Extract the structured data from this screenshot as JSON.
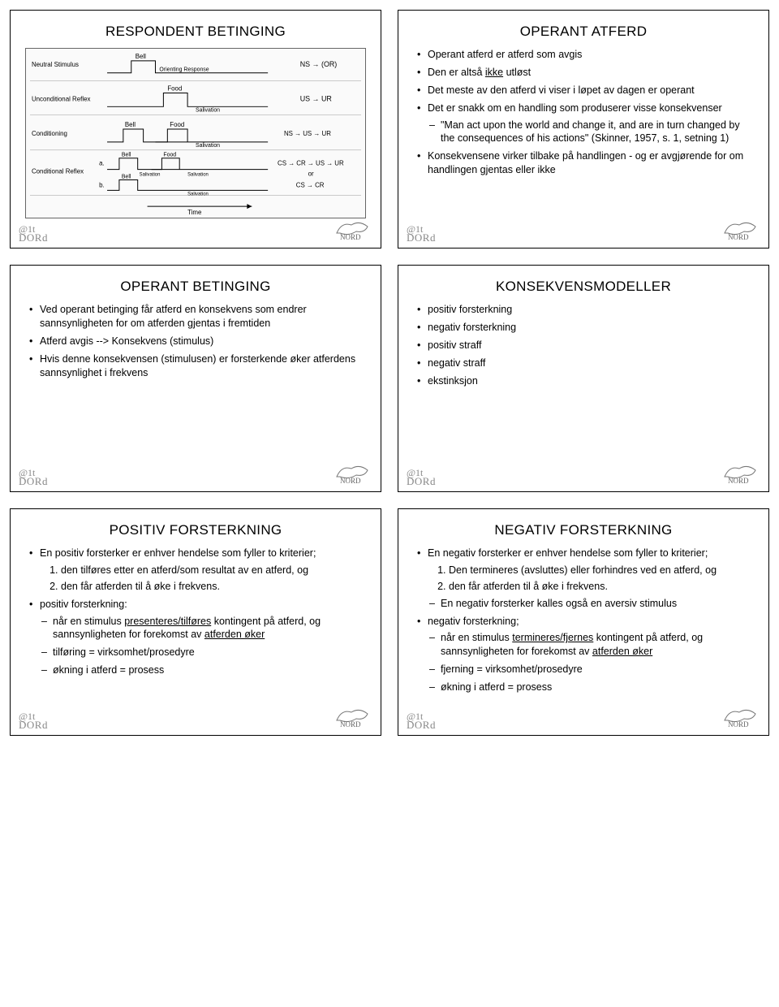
{
  "slides": {
    "respondent": {
      "title": "RESPONDENT BETINGING",
      "diagram": {
        "row_labels": [
          "Neutral Stimulus",
          "Unconditional Reflex",
          "Conditioning",
          "Conditional Reflex"
        ],
        "stim_labels": [
          "Bell",
          "Food",
          "Salivation"
        ],
        "formulas": [
          "NS → (OR)",
          "US → UR",
          "NS → US → UR",
          "CS → CR → US → UR",
          "or",
          "CS → CR"
        ],
        "xaxis": "Time"
      }
    },
    "operant_atferd": {
      "title": "OPERANT ATFERD",
      "bullets": [
        "Operant atferd er atferd som avgis",
        "Den er altså <u>ikke</u> utløst",
        "Det meste av den atferd vi viser i løpet av dagen er operant",
        "Det er snakk om en handling som produserer visse konsekvenser"
      ],
      "sub1": [
        "\"Man act upon the world and change it, and are in turn changed by the consequences of his actions\" (Skinner, 1957, s. 1, setning 1)"
      ],
      "bullets2": [
        "Konsekvensene virker tilbake på handlingen - og er avgjørende for om handlingen gjentas eller ikke"
      ]
    },
    "operant_bet": {
      "title": "OPERANT BETINGING",
      "bullets": [
        "Ved operant betinging får atferd en konsekvens som endrer sannsynligheten for om atferden gjentas i fremtiden",
        "Atferd avgis --> Konsekvens (stimulus)",
        "Hvis denne konsekvensen (stimulusen) er forsterkende øker atferdens sannsynlighet i frekvens"
      ]
    },
    "konsekvens": {
      "title": "KONSEKVENSMODELLER",
      "bullets": [
        "positiv forsterkning",
        "negativ forsterkning",
        "positiv straff",
        "negativ straff",
        "ekstinksjon"
      ]
    },
    "pos_forst": {
      "title": "POSITIV FORSTERKNING",
      "intro": "En positiv forsterker er enhver hendelse som fyller to kriterier;",
      "crit": [
        "den tilføres etter en atferd/som resultat av en atferd, og",
        "den får atferden til å øke i frekvens."
      ],
      "b2": "positiv forsterkning:",
      "sub": [
        "når en stimulus <u>presenteres/tilføres</u> kontingent på atferd, og sannsynligheten for forekomst av <u>atferden øker</u>",
        "tilføring = virksomhet/prosedyre",
        "økning i atferd = prosess"
      ]
    },
    "neg_forst": {
      "title": "NEGATIV FORSTERKNING",
      "intro": "En negativ forsterker er enhver hendelse som fyller to kriterier;",
      "crit": [
        "Den termineres (avsluttes) eller forhindres ved en atferd, og",
        "den får atferden til å øke i frekvens."
      ],
      "sub0": [
        "En negativ forsterker kalles også en aversiv stimulus"
      ],
      "b2": "negativ forsterkning;",
      "sub": [
        "når en stimulus <u>termineres/fjernes</u> kontingent på atferd, og sannsynligheten for forekomst av <u>atferden øker</u>",
        "fjerning = virksomhet/prosedyre",
        "økning i atferd = prosess"
      ]
    }
  },
  "logo": {
    "left_top": "@1t",
    "left_bot": "DORd",
    "right": "NORD"
  }
}
